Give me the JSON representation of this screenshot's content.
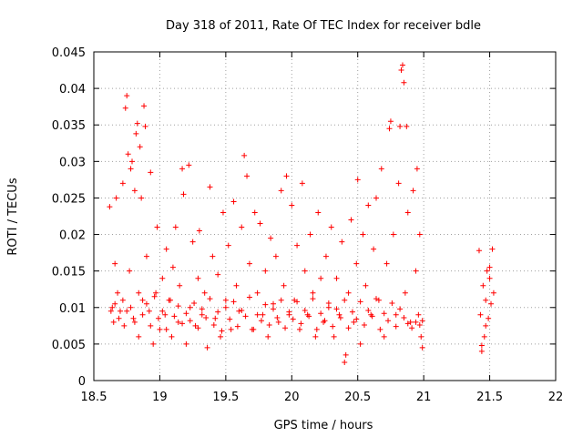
{
  "chart_data": {
    "type": "scatter",
    "title": "Day 318 of 2011, Rate Of TEC Index for receiver bdle",
    "xlabel": "GPS time / hours",
    "ylabel": "ROTI / TECUs",
    "xlim": [
      18.5,
      22
    ],
    "ylim": [
      0,
      0.045
    ],
    "x_ticks": [
      "18.5",
      "19",
      "19.5",
      "20",
      "20.5",
      "21",
      "21.5",
      "22"
    ],
    "y_ticks": [
      "0",
      "0.005",
      "0.01",
      "0.015",
      "0.02",
      "0.025",
      "0.03",
      "0.035",
      "0.04",
      "0.045"
    ],
    "x_tick_values": [
      18.5,
      19,
      19.5,
      20,
      20.5,
      21,
      21.5,
      22
    ],
    "y_tick_values": [
      0,
      0.005,
      0.01,
      0.015,
      0.02,
      0.025,
      0.03,
      0.035,
      0.04,
      0.045
    ],
    "grid": true,
    "marker": "+",
    "color": "#ff0000",
    "points": [
      [
        18.62,
        0.0238
      ],
      [
        18.64,
        0.01
      ],
      [
        18.65,
        0.008
      ],
      [
        18.66,
        0.016
      ],
      [
        18.67,
        0.025
      ],
      [
        18.68,
        0.012
      ],
      [
        18.7,
        0.0095
      ],
      [
        18.72,
        0.027
      ],
      [
        18.73,
        0.0075
      ],
      [
        18.74,
        0.0373
      ],
      [
        18.75,
        0.039
      ],
      [
        18.76,
        0.031
      ],
      [
        18.77,
        0.015
      ],
      [
        18.78,
        0.029
      ],
      [
        18.79,
        0.03
      ],
      [
        18.8,
        0.0085
      ],
      [
        18.81,
        0.026
      ],
      [
        18.82,
        0.0338
      ],
      [
        18.83,
        0.0352
      ],
      [
        18.84,
        0.006
      ],
      [
        18.85,
        0.032
      ],
      [
        18.86,
        0.025
      ],
      [
        18.87,
        0.011
      ],
      [
        18.88,
        0.0376
      ],
      [
        18.89,
        0.0348
      ],
      [
        18.9,
        0.017
      ],
      [
        18.92,
        0.0095
      ],
      [
        18.93,
        0.0285
      ],
      [
        18.95,
        0.005
      ],
      [
        18.97,
        0.012
      ],
      [
        18.98,
        0.021
      ],
      [
        19.0,
        0.007
      ],
      [
        19.02,
        0.014
      ],
      [
        19.04,
        0.009
      ],
      [
        19.05,
        0.018
      ],
      [
        19.07,
        0.011
      ],
      [
        19.09,
        0.006
      ],
      [
        19.1,
        0.0155
      ],
      [
        19.12,
        0.021
      ],
      [
        19.14,
        0.008
      ],
      [
        19.15,
        0.013
      ],
      [
        19.17,
        0.029
      ],
      [
        19.18,
        0.0255
      ],
      [
        19.2,
        0.005
      ],
      [
        19.22,
        0.0295
      ],
      [
        19.23,
        0.01
      ],
      [
        19.25,
        0.019
      ],
      [
        19.27,
        0.0075
      ],
      [
        19.29,
        0.014
      ],
      [
        19.3,
        0.0205
      ],
      [
        19.32,
        0.009
      ],
      [
        19.34,
        0.012
      ],
      [
        19.36,
        0.0045
      ],
      [
        19.38,
        0.0265
      ],
      [
        19.4,
        0.017
      ],
      [
        19.42,
        0.0085
      ],
      [
        19.44,
        0.0145
      ],
      [
        19.46,
        0.006
      ],
      [
        19.48,
        0.023
      ],
      [
        19.5,
        0.011
      ],
      [
        19.52,
        0.0185
      ],
      [
        19.54,
        0.007
      ],
      [
        19.56,
        0.0245
      ],
      [
        19.58,
        0.013
      ],
      [
        19.6,
        0.0095
      ],
      [
        19.62,
        0.021
      ],
      [
        19.64,
        0.0308
      ],
      [
        19.66,
        0.028
      ],
      [
        19.68,
        0.016
      ],
      [
        19.7,
        0.007
      ],
      [
        19.72,
        0.023
      ],
      [
        19.74,
        0.012
      ],
      [
        19.76,
        0.0215
      ],
      [
        19.78,
        0.009
      ],
      [
        19.8,
        0.015
      ],
      [
        19.82,
        0.006
      ],
      [
        19.84,
        0.0195
      ],
      [
        19.86,
        0.0105
      ],
      [
        19.88,
        0.017
      ],
      [
        19.9,
        0.008
      ],
      [
        19.92,
        0.026
      ],
      [
        19.94,
        0.013
      ],
      [
        19.96,
        0.028
      ],
      [
        19.98,
        0.009
      ],
      [
        20.0,
        0.024
      ],
      [
        20.02,
        0.011
      ],
      [
        20.04,
        0.0185
      ],
      [
        20.06,
        0.007
      ],
      [
        20.08,
        0.027
      ],
      [
        20.1,
        0.015
      ],
      [
        20.12,
        0.009
      ],
      [
        20.14,
        0.02
      ],
      [
        20.16,
        0.012
      ],
      [
        20.18,
        0.006
      ],
      [
        20.2,
        0.023
      ],
      [
        20.22,
        0.014
      ],
      [
        20.24,
        0.008
      ],
      [
        20.26,
        0.017
      ],
      [
        20.28,
        0.01
      ],
      [
        20.3,
        0.021
      ],
      [
        20.32,
        0.006
      ],
      [
        20.34,
        0.014
      ],
      [
        20.36,
        0.009
      ],
      [
        20.38,
        0.019
      ],
      [
        20.4,
        0.0025
      ],
      [
        20.41,
        0.0035
      ],
      [
        20.43,
        0.012
      ],
      [
        20.45,
        0.022
      ],
      [
        20.47,
        0.008
      ],
      [
        20.49,
        0.016
      ],
      [
        20.5,
        0.0275
      ],
      [
        20.52,
        0.005
      ],
      [
        20.54,
        0.02
      ],
      [
        20.56,
        0.013
      ],
      [
        20.58,
        0.024
      ],
      [
        20.6,
        0.009
      ],
      [
        20.62,
        0.018
      ],
      [
        20.64,
        0.025
      ],
      [
        20.66,
        0.011
      ],
      [
        20.68,
        0.029
      ],
      [
        20.7,
        0.006
      ],
      [
        20.72,
        0.016
      ],
      [
        20.74,
        0.0345
      ],
      [
        20.75,
        0.0355
      ],
      [
        20.77,
        0.02
      ],
      [
        20.79,
        0.009
      ],
      [
        20.81,
        0.027
      ],
      [
        20.82,
        0.0348
      ],
      [
        20.83,
        0.0425
      ],
      [
        20.84,
        0.0432
      ],
      [
        20.85,
        0.0408
      ],
      [
        20.86,
        0.012
      ],
      [
        20.87,
        0.0348
      ],
      [
        20.88,
        0.023
      ],
      [
        20.9,
        0.008
      ],
      [
        20.92,
        0.026
      ],
      [
        20.94,
        0.015
      ],
      [
        20.95,
        0.029
      ],
      [
        20.96,
        0.009
      ],
      [
        20.97,
        0.02
      ],
      [
        20.98,
        0.006
      ],
      [
        20.99,
        0.0045
      ],
      [
        21.42,
        0.0178
      ],
      [
        21.43,
        0.009
      ],
      [
        21.44,
        0.004
      ],
      [
        21.45,
        0.013
      ],
      [
        21.46,
        0.006
      ],
      [
        21.47,
        0.011
      ],
      [
        21.48,
        0.015
      ],
      [
        21.49,
        0.0085
      ],
      [
        21.5,
        0.014
      ],
      [
        21.51,
        0.0105
      ],
      [
        21.52,
        0.018
      ],
      [
        21.53,
        0.012
      ],
      [
        21.44,
        0.0048
      ],
      [
        21.47,
        0.0075
      ],
      [
        21.5,
        0.0155
      ],
      [
        18.63,
        0.0095
      ],
      [
        18.66,
        0.0105
      ],
      [
        18.69,
        0.0085
      ],
      [
        18.72,
        0.011
      ],
      [
        18.75,
        0.0095
      ],
      [
        18.78,
        0.01
      ],
      [
        18.81,
        0.008
      ],
      [
        18.84,
        0.012
      ],
      [
        18.87,
        0.009
      ],
      [
        18.9,
        0.0105
      ],
      [
        18.93,
        0.0075
      ],
      [
        18.96,
        0.0115
      ],
      [
        18.99,
        0.0085
      ],
      [
        19.02,
        0.0095
      ],
      [
        19.05,
        0.007
      ],
      [
        19.08,
        0.011
      ],
      [
        19.11,
        0.0088
      ],
      [
        19.14,
        0.0102
      ],
      [
        19.17,
        0.0078
      ],
      [
        19.2,
        0.0092
      ],
      [
        19.23,
        0.0082
      ],
      [
        19.26,
        0.0106
      ],
      [
        19.29,
        0.0072
      ],
      [
        19.32,
        0.0098
      ],
      [
        19.35,
        0.0086
      ],
      [
        19.38,
        0.0112
      ],
      [
        19.41,
        0.0076
      ],
      [
        19.44,
        0.0094
      ],
      [
        19.47,
        0.0068
      ],
      [
        19.5,
        0.01
      ],
      [
        19.53,
        0.0084
      ],
      [
        19.56,
        0.0108
      ],
      [
        19.59,
        0.0074
      ],
      [
        19.62,
        0.0096
      ],
      [
        19.65,
        0.0088
      ],
      [
        19.68,
        0.0114
      ],
      [
        19.71,
        0.007
      ],
      [
        19.74,
        0.009
      ],
      [
        19.77,
        0.0082
      ],
      [
        19.8,
        0.0104
      ],
      [
        19.83,
        0.0076
      ],
      [
        19.86,
        0.0098
      ],
      [
        19.89,
        0.0086
      ],
      [
        19.92,
        0.011
      ],
      [
        19.95,
        0.0072
      ],
      [
        19.98,
        0.0094
      ],
      [
        20.01,
        0.0084
      ],
      [
        20.04,
        0.0108
      ],
      [
        20.07,
        0.0078
      ],
      [
        20.1,
        0.0096
      ],
      [
        20.13,
        0.0088
      ],
      [
        20.16,
        0.0112
      ],
      [
        20.19,
        0.007
      ],
      [
        20.22,
        0.0092
      ],
      [
        20.25,
        0.0082
      ],
      [
        20.28,
        0.0106
      ],
      [
        20.31,
        0.0074
      ],
      [
        20.34,
        0.0098
      ],
      [
        20.37,
        0.0086
      ],
      [
        20.4,
        0.011
      ],
      [
        20.43,
        0.0072
      ],
      [
        20.46,
        0.0094
      ],
      [
        20.49,
        0.0084
      ],
      [
        20.52,
        0.0108
      ],
      [
        20.55,
        0.0076
      ],
      [
        20.58,
        0.0096
      ],
      [
        20.61,
        0.0088
      ],
      [
        20.64,
        0.0112
      ],
      [
        20.67,
        0.007
      ],
      [
        20.7,
        0.0092
      ],
      [
        20.73,
        0.0082
      ],
      [
        20.76,
        0.0106
      ],
      [
        20.79,
        0.0074
      ],
      [
        20.82,
        0.0098
      ],
      [
        20.85,
        0.0086
      ],
      [
        20.88,
        0.0078
      ],
      [
        20.91,
        0.0072
      ],
      [
        20.94,
        0.008
      ],
      [
        20.97,
        0.0076
      ],
      [
        20.99,
        0.0082
      ]
    ]
  }
}
